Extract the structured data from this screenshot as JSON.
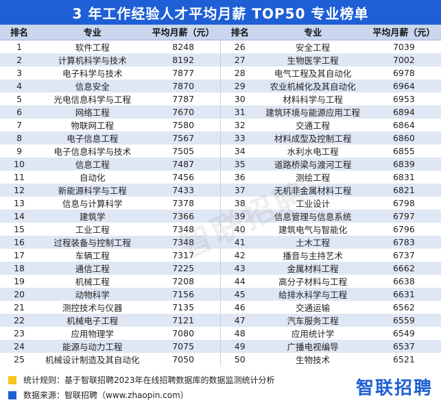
{
  "title": "3 年工作经验人才平均月薪 TOP50 专业榜单",
  "headers": {
    "rank": "排名",
    "major": "专业",
    "salary": "平均月薪（元）"
  },
  "rows": [
    {
      "l_rank": "1",
      "l_major": "软件工程",
      "l_sal": "8248",
      "r_rank": "26",
      "r_major": "安全工程",
      "r_sal": "7039"
    },
    {
      "l_rank": "2",
      "l_major": "计算机科学与技术",
      "l_sal": "8192",
      "r_rank": "27",
      "r_major": "生物医学工程",
      "r_sal": "7002"
    },
    {
      "l_rank": "3",
      "l_major": "电子科学与技术",
      "l_sal": "7877",
      "r_rank": "28",
      "r_major": "电气工程及其自动化",
      "r_sal": "6978"
    },
    {
      "l_rank": "4",
      "l_major": "信息安全",
      "l_sal": "7870",
      "r_rank": "29",
      "r_major": "农业机械化及其自动化",
      "r_sal": "6964"
    },
    {
      "l_rank": "5",
      "l_major": "光电信息科学与工程",
      "l_sal": "7787",
      "r_rank": "30",
      "r_major": "材料科学与工程",
      "r_sal": "6953"
    },
    {
      "l_rank": "6",
      "l_major": "网络工程",
      "l_sal": "7670",
      "r_rank": "31",
      "r_major": "建筑环境与能源应用工程",
      "r_sal": "6894"
    },
    {
      "l_rank": "7",
      "l_major": "物联网工程",
      "l_sal": "7580",
      "r_rank": "32",
      "r_major": "交通工程",
      "r_sal": "6864"
    },
    {
      "l_rank": "8",
      "l_major": "电子信息工程",
      "l_sal": "7567",
      "r_rank": "33",
      "r_major": "材料成型及控制工程",
      "r_sal": "6860"
    },
    {
      "l_rank": "9",
      "l_major": "电子信息科学与技术",
      "l_sal": "7505",
      "r_rank": "34",
      "r_major": "水利水电工程",
      "r_sal": "6855"
    },
    {
      "l_rank": "10",
      "l_major": "信息工程",
      "l_sal": "7487",
      "r_rank": "35",
      "r_major": "道路桥梁与渡河工程",
      "r_sal": "6839"
    },
    {
      "l_rank": "11",
      "l_major": "自动化",
      "l_sal": "7456",
      "r_rank": "36",
      "r_major": "测绘工程",
      "r_sal": "6831"
    },
    {
      "l_rank": "12",
      "l_major": "新能源科学与工程",
      "l_sal": "7433",
      "r_rank": "37",
      "r_major": "无机非金属材料工程",
      "r_sal": "6821"
    },
    {
      "l_rank": "13",
      "l_major": "信息与计算科学",
      "l_sal": "7378",
      "r_rank": "38",
      "r_major": "工业设计",
      "r_sal": "6798"
    },
    {
      "l_rank": "14",
      "l_major": "建筑学",
      "l_sal": "7366",
      "r_rank": "39",
      "r_major": "信息管理与信息系统",
      "r_sal": "6797"
    },
    {
      "l_rank": "15",
      "l_major": "工业工程",
      "l_sal": "7348",
      "r_rank": "40",
      "r_major": "建筑电气与智能化",
      "r_sal": "6796"
    },
    {
      "l_rank": "16",
      "l_major": "过程装备与控制工程",
      "l_sal": "7348",
      "r_rank": "41",
      "r_major": "土木工程",
      "r_sal": "6783"
    },
    {
      "l_rank": "17",
      "l_major": "车辆工程",
      "l_sal": "7317",
      "r_rank": "42",
      "r_major": "播音与主持艺术",
      "r_sal": "6737"
    },
    {
      "l_rank": "18",
      "l_major": "通信工程",
      "l_sal": "7225",
      "r_rank": "43",
      "r_major": "金属材料工程",
      "r_sal": "6662"
    },
    {
      "l_rank": "19",
      "l_major": "机械工程",
      "l_sal": "7208",
      "r_rank": "44",
      "r_major": "高分子材料与工程",
      "r_sal": "6638"
    },
    {
      "l_rank": "20",
      "l_major": "动物科学",
      "l_sal": "7156",
      "r_rank": "45",
      "r_major": "给排水科学与工程",
      "r_sal": "6631"
    },
    {
      "l_rank": "21",
      "l_major": "测控技术与仪器",
      "l_sal": "7135",
      "r_rank": "46",
      "r_major": "交通运输",
      "r_sal": "6562"
    },
    {
      "l_rank": "22",
      "l_major": "机械电子工程",
      "l_sal": "7121",
      "r_rank": "47",
      "r_major": "汽车服务工程",
      "r_sal": "6559"
    },
    {
      "l_rank": "23",
      "l_major": "应用物理学",
      "l_sal": "7080",
      "r_rank": "48",
      "r_major": "应用统计学",
      "r_sal": "6549"
    },
    {
      "l_rank": "24",
      "l_major": "能源与动力工程",
      "l_sal": "7075",
      "r_rank": "49",
      "r_major": "广播电视编导",
      "r_sal": "6537"
    },
    {
      "l_rank": "25",
      "l_major": "机械设计制造及其自动化",
      "l_sal": "7050",
      "r_rank": "50",
      "r_major": "生物技术",
      "r_sal": "6521"
    }
  ],
  "footer": {
    "rule": "统计规则：基于智联招聘2023年在线招聘数据库的数据监测统计分析",
    "source": "数据来源：智联招聘（www.zhaopin.com）",
    "logo": "智联招聘",
    "watermark": "智联招聘",
    "rule_color": "#f5c518",
    "source_color": "#1f5fd6"
  },
  "colors": {
    "title_bg": "#1f5fd6",
    "header_bg": "#c9d6ee",
    "stripe": "#dfe6f4"
  }
}
